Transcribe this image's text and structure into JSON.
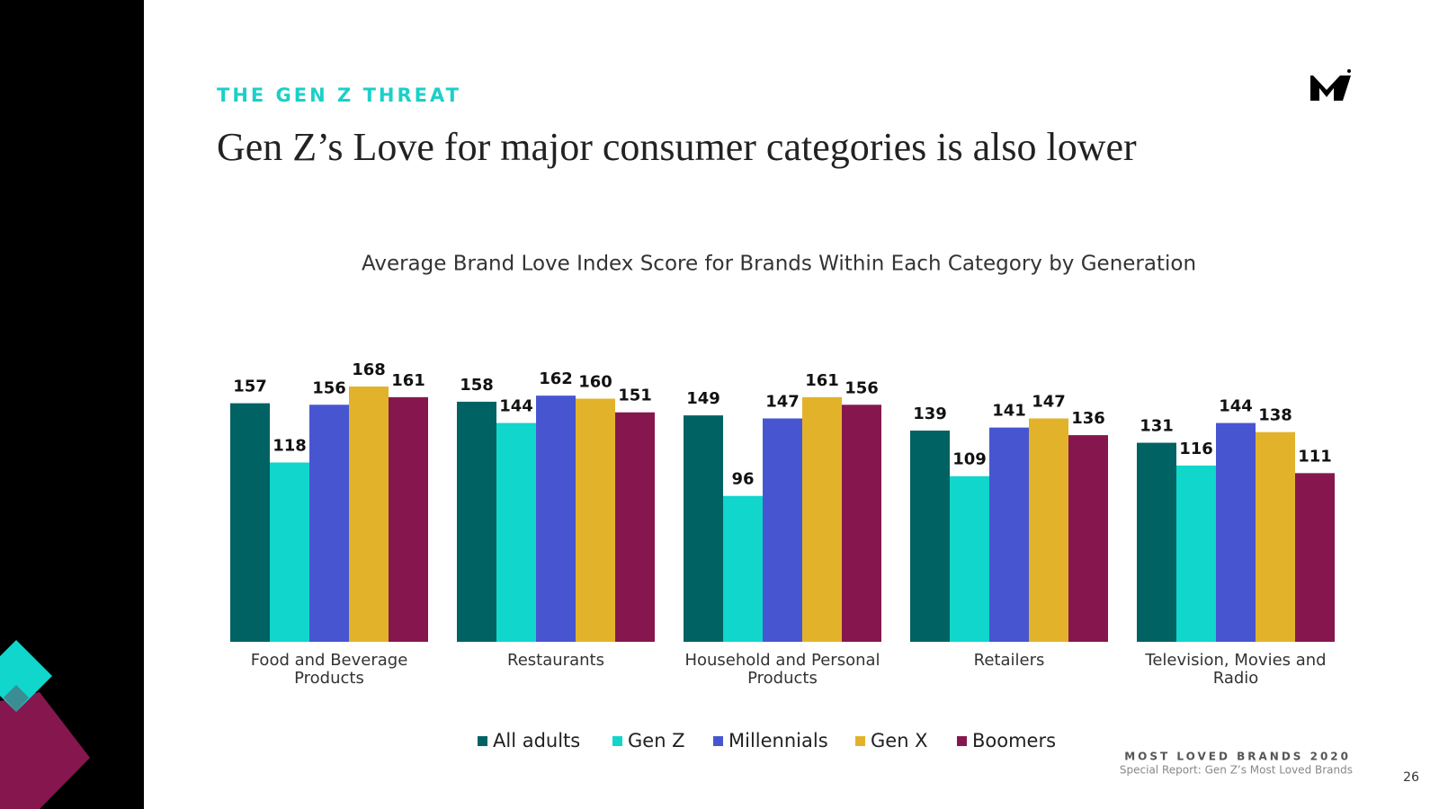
{
  "eyebrow": "THE GEN Z THREAT",
  "headline": "Gen Z’s Love for major consumer categories is also lower",
  "footer": {
    "brand": "MOST LOVED BRANDS 2020",
    "report": "Special Report: Gen Z’s Most Loved Brands",
    "page": "26"
  },
  "chart_data": {
    "type": "bar",
    "title": "Average Brand Love Index Score for Brands Within Each Category by Generation",
    "categories": [
      "Food and Beverage Products",
      "Restaurants",
      "Household and Personal Products",
      "Retailers",
      "Television, Movies and Radio"
    ],
    "series": [
      {
        "name": "All adults",
        "color": "#006262",
        "values": [
          157,
          158,
          149,
          139,
          131
        ]
      },
      {
        "name": "Gen Z",
        "color": "#10d6cc",
        "values": [
          118,
          144,
          96,
          109,
          116
        ]
      },
      {
        "name": "Millennials",
        "color": "#4756d0",
        "values": [
          156,
          162,
          147,
          141,
          144
        ]
      },
      {
        "name": "Gen X",
        "color": "#e2b32a",
        "values": [
          168,
          160,
          161,
          147,
          138
        ]
      },
      {
        "name": "Boomers",
        "color": "#86174e",
        "values": [
          161,
          151,
          156,
          136,
          111
        ]
      }
    ],
    "legend": "bottom"
  }
}
